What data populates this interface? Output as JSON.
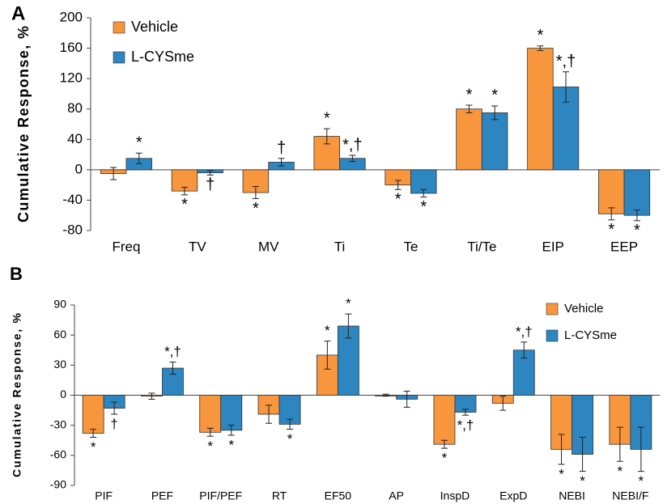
{
  "chart_data": [
    {
      "type": "bar",
      "panel": "A",
      "y_label": "Cumulative Response, %",
      "legend": "top-left",
      "categories": [
        "Freq",
        "TV",
        "MV",
        "Ti",
        "Te",
        "Ti/Te",
        "EIP",
        "EEP"
      ],
      "ylim": [
        -80,
        200
      ],
      "yticks": [
        -80,
        -40,
        0,
        40,
        80,
        120,
        160,
        200
      ],
      "series": [
        {
          "name": "Vehicle",
          "color": "#f7963c",
          "values": [
            -5,
            -28,
            -30,
            44,
            -20,
            80,
            160,
            -58
          ],
          "errors": [
            8,
            5,
            8,
            10,
            6,
            5,
            3,
            8
          ],
          "annotations": [
            null,
            "*",
            "*",
            "*",
            "*",
            "*",
            "*",
            "*"
          ]
        },
        {
          "name": "L-CYSme",
          "color": "#2e86c1",
          "values": [
            15,
            -4,
            10,
            15,
            -31,
            75,
            109,
            -60
          ],
          "errors": [
            7,
            3,
            5,
            4,
            5,
            9,
            20,
            7
          ],
          "annotations": [
            "*",
            "†",
            "†",
            "*,†",
            "*",
            "*",
            "*,†",
            "*"
          ]
        }
      ]
    },
    {
      "type": "bar",
      "panel": "B",
      "y_label": "Cumulative Response, %",
      "legend": "top-right",
      "categories": [
        "PIF",
        "PEF",
        "PIF/PEF",
        "RT",
        "EF50",
        "AP",
        "InspD",
        "ExpD",
        "NEBI",
        "NEBI/F"
      ],
      "ylim": [
        -90,
        90
      ],
      "yticks": [
        -90,
        -60,
        -30,
        0,
        30,
        60,
        90
      ],
      "series": [
        {
          "name": "Vehicle",
          "color": "#f7963c",
          "values": [
            -38,
            -1,
            -37,
            -19,
            40,
            0,
            -49,
            -8,
            -54,
            -49
          ],
          "errors": [
            4,
            3,
            4,
            9,
            14,
            1,
            4,
            7,
            15,
            17
          ],
          "annotations": [
            "*",
            null,
            "*",
            null,
            "*",
            null,
            "*",
            null,
            "*",
            "*"
          ]
        },
        {
          "name": "L-CYSme",
          "color": "#2e86c1",
          "values": [
            -13,
            27,
            -35,
            -29,
            69,
            -4,
            -17,
            45,
            -59,
            -54
          ],
          "errors": [
            6,
            6,
            5,
            5,
            12,
            8,
            3,
            8,
            17,
            22
          ],
          "annotations": [
            "†",
            "*,†",
            "*",
            "*",
            "*",
            null,
            "*,†",
            "*,†",
            "*",
            "*"
          ]
        }
      ]
    }
  ]
}
